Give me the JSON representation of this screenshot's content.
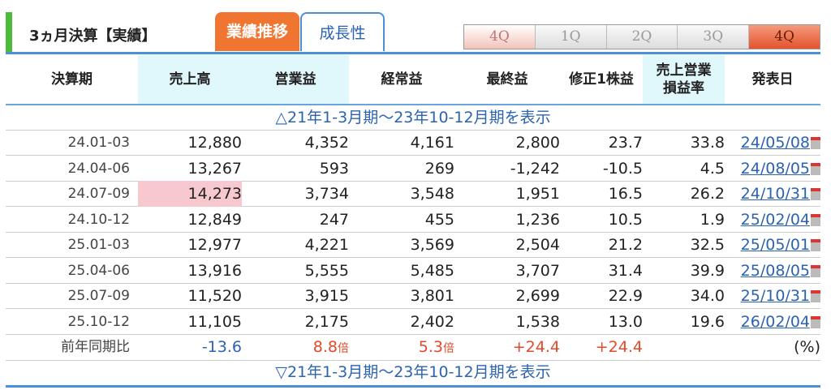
{
  "header": {
    "title": "3ヵ月決算【実績】",
    "tabs": [
      "業績推移",
      "成長性"
    ],
    "quarters": [
      "4Q",
      "1Q",
      "2Q",
      "3Q",
      "4Q"
    ],
    "selected_quarter_index": 4
  },
  "columns": [
    "決算期",
    "売上高",
    "営業益",
    "経常益",
    "最終益",
    "修正1株益",
    "売上営業\n損益率",
    "発表日"
  ],
  "toggle_top": "△21年1-3月期～23年10-12月期を表示",
  "toggle_bottom": "▽21年1-3月期～23年10-12月期を表示",
  "rows": [
    [
      "24.01-03",
      "12,880",
      "4,352",
      "4,161",
      "2,800",
      "23.7",
      "33.8",
      "24/05/08"
    ],
    [
      "24.04-06",
      "13,267",
      "593",
      "269",
      "-1,242",
      "-10.5",
      "4.5",
      "24/08/05"
    ],
    [
      "24.07-09",
      "14,273",
      "3,734",
      "3,548",
      "1,951",
      "16.5",
      "26.2",
      "24/10/31"
    ],
    [
      "24.10-12",
      "12,849",
      "247",
      "455",
      "1,236",
      "10.5",
      "1.9",
      "25/02/04"
    ],
    [
      "25.01-03",
      "12,977",
      "4,221",
      "3,569",
      "2,504",
      "21.2",
      "32.5",
      "25/05/01"
    ],
    [
      "25.04-06",
      "13,916",
      "5,555",
      "5,485",
      "3,707",
      "31.4",
      "39.9",
      "25/08/05"
    ],
    [
      "25.07-09",
      "11,520",
      "3,915",
      "3,801",
      "2,699",
      "22.9",
      "34.0",
      "25/10/31"
    ],
    [
      "25.10-12",
      "11,105",
      "2,175",
      "2,402",
      "1,538",
      "13.0",
      "19.6",
      "26/02/04"
    ]
  ],
  "highlighted_cell": {
    "row": 2,
    "column": "売上高",
    "color": "#f7c9cf"
  },
  "yoy": {
    "label": "前年同期比",
    "sales": "-13.6",
    "op": "8.8",
    "op_unit": "倍",
    "ordinary": "5.3",
    "ordinary_unit": "倍",
    "net": "+24.4",
    "eps": "+24.4",
    "unit": "(%)"
  },
  "colors": {
    "accent": "#ef7530",
    "link": "#2b63b0",
    "negative": "#2b63b0",
    "positive": "#e04a2a"
  }
}
